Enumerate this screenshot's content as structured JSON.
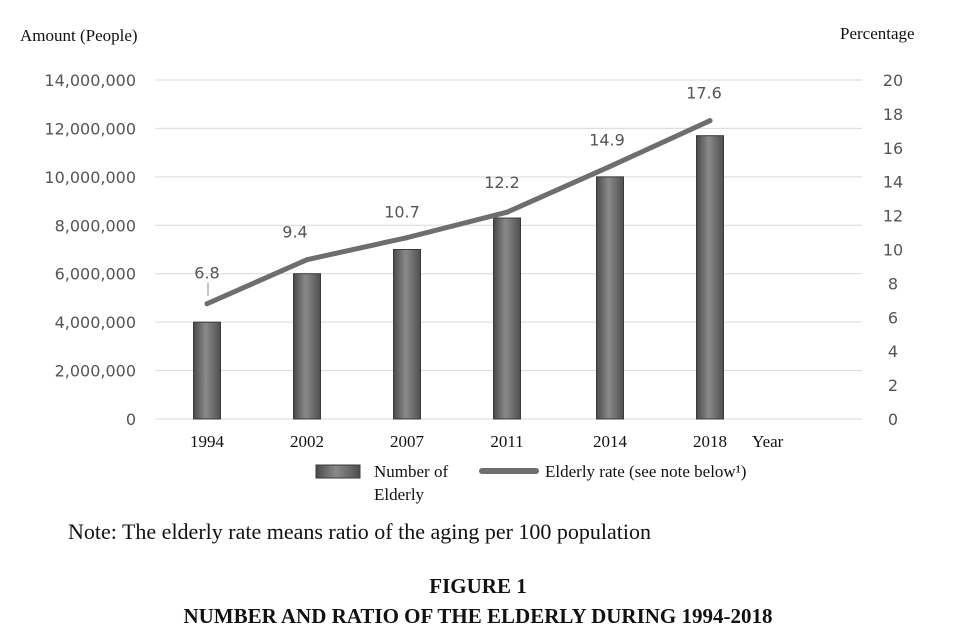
{
  "chart_data": {
    "type": "bar",
    "categories": [
      "1994",
      "2002",
      "2007",
      "2011",
      "2014",
      "2018"
    ],
    "series": [
      {
        "name": "Number of Elderly",
        "type": "bar",
        "axis": "left",
        "values": [
          4000000,
          6000000,
          7000000,
          8300000,
          10000000,
          11700000
        ]
      },
      {
        "name": "Elderly rate (see note below¹)",
        "type": "line",
        "axis": "right",
        "values": [
          6.8,
          9.4,
          10.7,
          12.2,
          14.9,
          17.6
        ]
      }
    ],
    "data_labels": [
      "6.8",
      "9.4",
      "10.7",
      "12.2",
      "14.9",
      "17.6"
    ],
    "ylabel_left": "Amount (People)",
    "ylabel_right": "Percentage",
    "xlabel": "Year",
    "ylim_left": [
      0,
      14000000
    ],
    "ylim_right": [
      0,
      20
    ],
    "yticks_left": [
      "14,000,000",
      "12,000,000",
      "10,000,000",
      "8,000,000",
      "6,000,000",
      "4,000,000",
      "2,000,000",
      "0"
    ],
    "yticks_right": [
      "20",
      "18",
      "16",
      "14",
      "12",
      "10",
      "8",
      "6",
      "4",
      "2",
      "0"
    ],
    "legend": [
      "Number of Elderly",
      "Elderly rate (see note below¹)"
    ],
    "legend_position": "bottom",
    "grid": true
  },
  "note": "Note: The elderly rate means ratio of the aging per 100 population",
  "figure_number": "FIGURE 1",
  "figure_title": "NUMBER AND RATIO OF THE ELDERLY DURING 1994-2018",
  "colors": {
    "bar": "#666666",
    "line": "#6e6e6e",
    "grid": "#d9d9d9"
  }
}
